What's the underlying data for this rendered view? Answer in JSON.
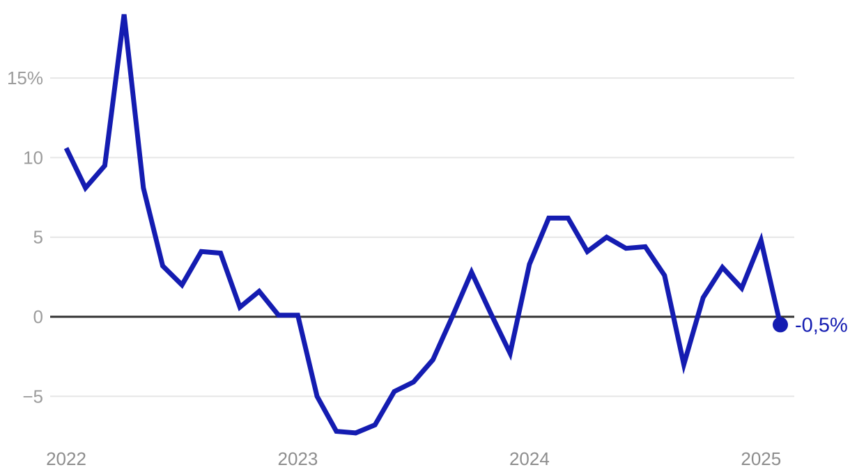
{
  "chart_data": {
    "type": "line",
    "x": [
      "2022-01",
      "2022-02",
      "2022-03",
      "2022-04",
      "2022-05",
      "2022-06",
      "2022-07",
      "2022-08",
      "2022-09",
      "2022-10",
      "2022-11",
      "2022-12",
      "2023-01",
      "2023-02",
      "2023-03",
      "2023-04",
      "2023-05",
      "2023-06",
      "2023-07",
      "2023-08",
      "2023-09",
      "2023-10",
      "2023-11",
      "2023-12",
      "2024-01",
      "2024-02",
      "2024-03",
      "2024-04",
      "2024-05",
      "2024-06",
      "2024-07",
      "2024-08",
      "2024-09",
      "2024-10",
      "2024-11",
      "2024-12",
      "2025-01",
      "2025-02"
    ],
    "series": [
      {
        "name": "percent-change",
        "values": [
          10.6,
          8.1,
          9.5,
          19.0,
          8.1,
          3.2,
          2.0,
          4.1,
          4.0,
          0.6,
          1.6,
          0.1,
          0.1,
          -5.0,
          -7.2,
          -7.3,
          -6.8,
          -4.7,
          -4.1,
          -2.7,
          0.0,
          2.8,
          0.2,
          -2.3,
          3.3,
          6.2,
          6.2,
          4.1,
          5.0,
          4.3,
          4.4,
          2.6,
          -3.0,
          1.2,
          3.1,
          1.8,
          4.8,
          -0.5
        ]
      }
    ],
    "x_axis": {
      "ticks": [
        {
          "index": 0,
          "label": "2022"
        },
        {
          "index": 12,
          "label": "2023"
        },
        {
          "index": 24,
          "label": "2024"
        },
        {
          "index": 36,
          "label": "2025"
        }
      ]
    },
    "y_axis": {
      "unit": "%",
      "ticks": [
        {
          "value": 15,
          "label": "15%"
        },
        {
          "value": 10,
          "label": "10"
        },
        {
          "value": 5,
          "label": "5"
        },
        {
          "value": 0,
          "label": "0"
        },
        {
          "value": -5,
          "label": "−5"
        }
      ]
    },
    "gridline_values": [
      15,
      10,
      5,
      -5
    ],
    "zero_line": true,
    "ylim": [
      -8,
      20
    ],
    "legend": "none",
    "grid": "horizontal-only",
    "end_label": {
      "text": "-0,5%",
      "value": -0.5
    },
    "colors": {
      "line": "#141cb1",
      "marker": "#141cb1",
      "end_label_text": "#141cb1",
      "grid": "#e6e6e6",
      "zero_line": "#333333",
      "y_axis_labels": "#9c9c9c",
      "x_axis_labels": "#8d8d8d",
      "background": "#ffffff"
    }
  }
}
